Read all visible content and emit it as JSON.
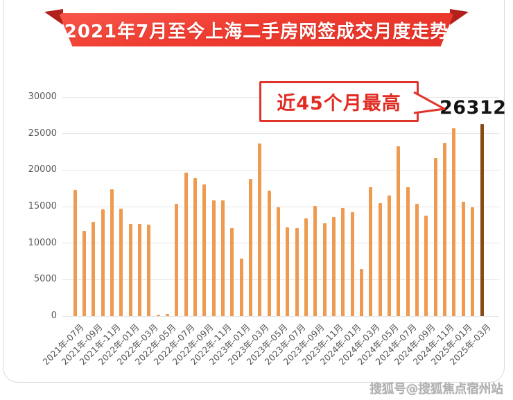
{
  "banner": {
    "title": "2021年7月至今上海二手房网签成交月度走势"
  },
  "annotation": {
    "label": "近45个月最高",
    "value": "26312"
  },
  "watermark": {
    "text": "搜狐号@搜狐焦点宿州站"
  },
  "colors": {
    "bar": "#ee9b51",
    "bar_highlight": "#8a4a15",
    "banner_red": "#ee3526",
    "banner_fold": "#b1201a",
    "annotation_red": "#e0342b",
    "grid": "#e6e6e6",
    "axis_text": "#5a5a5a"
  },
  "chart_data": {
    "type": "bar",
    "title": "2021年7月至今上海二手房网签成交月度走势",
    "x": [
      "2021-07",
      "2021-08",
      "2021-09",
      "2021-10",
      "2021-11",
      "2021-12",
      "2022-01",
      "2022-02",
      "2022-03",
      "2022-04",
      "2022-05",
      "2022-06",
      "2022-07",
      "2022-08",
      "2022-09",
      "2022-10",
      "2022-11",
      "2022-12",
      "2023-01",
      "2023-02",
      "2023-03",
      "2023-04",
      "2023-05",
      "2023-06",
      "2023-07",
      "2023-08",
      "2023-09",
      "2023-10",
      "2023-11",
      "2023-12",
      "2024-01",
      "2024-02",
      "2024-03",
      "2024-04",
      "2024-05",
      "2024-06",
      "2024-07",
      "2024-08",
      "2024-09",
      "2024-10",
      "2024-11",
      "2024-12",
      "2025-01",
      "2025-02",
      "2025-03"
    ],
    "values": [
      17300,
      11700,
      12900,
      14600,
      17400,
      14700,
      12600,
      12600,
      12500,
      150,
      300,
      15400,
      19700,
      18900,
      18000,
      15900,
      15900,
      12100,
      7900,
      18800,
      23600,
      17200,
      14900,
      12200,
      12100,
      13400,
      15100,
      12700,
      13600,
      14800,
      14200,
      6500,
      17650,
      15500,
      16500,
      23300,
      17650,
      15400,
      13800,
      21600,
      23700,
      25700,
      15700,
      14900,
      26312
    ],
    "tick_labels": [
      "2021年-07月",
      "2021年-09月",
      "2021年-11月",
      "2022年-01月",
      "2022年-03月",
      "2022年-05月",
      "2022年-07月",
      "2022年-09月",
      "2022年-11月",
      "2023年-01月",
      "2023年-03月",
      "2023年-05月",
      "2023年-07月",
      "2023年-09月",
      "2023年-11月",
      "2024年-01月",
      "2024年-03月",
      "2024年-05月",
      "2024年-07月",
      "2024年-09月",
      "2024年-11月",
      "2025年-01月",
      "2025年-03月"
    ],
    "tick_every": 2,
    "yticks": [
      0,
      5000,
      10000,
      15000,
      20000,
      25000,
      30000
    ],
    "ylim": [
      0,
      30000
    ],
    "grid": true,
    "legend": false,
    "highlight_index": 44,
    "highlight_value_label": "26312",
    "annotation": "近45个月最高"
  }
}
